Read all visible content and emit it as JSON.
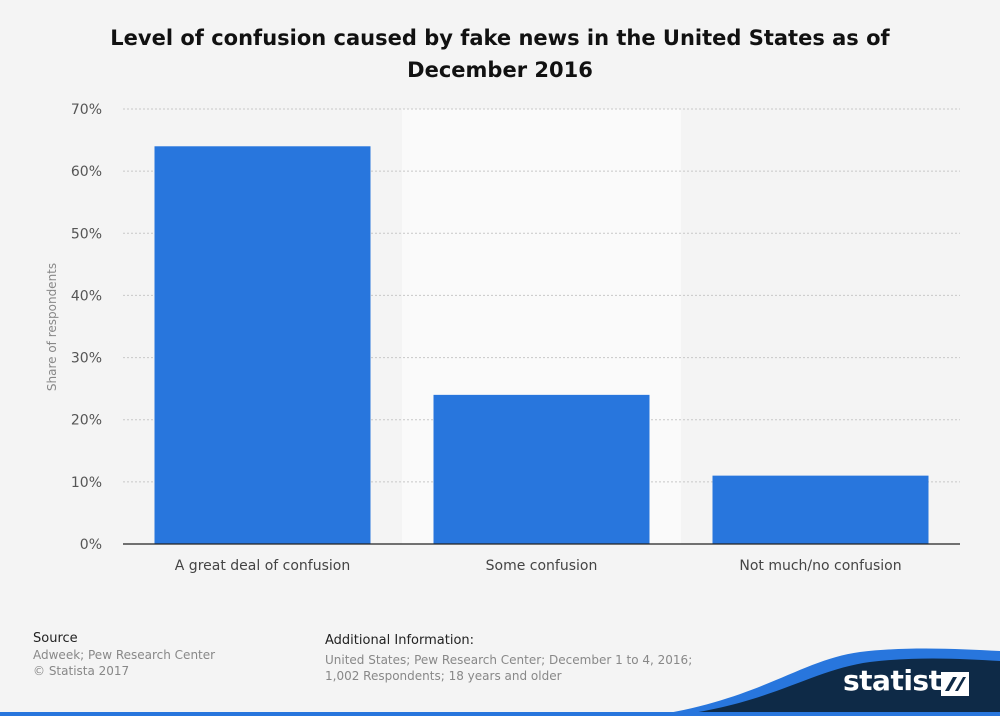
{
  "title": "Level of confusion caused by fake news in the United States as of December 2016",
  "chart_data": {
    "type": "bar",
    "categories": [
      "A great deal of confusion",
      "Some confusion",
      "Not much/no confusion"
    ],
    "values": [
      64,
      24,
      11
    ],
    "ylabel": "Share of respondents",
    "xlabel": "",
    "ylim": [
      0,
      70
    ],
    "yticks": [
      0,
      10,
      20,
      30,
      40,
      50,
      60,
      70
    ],
    "ytick_suffix": "%",
    "grid": true,
    "bar_color": "#2876dd"
  },
  "footer": {
    "source_heading": "Source",
    "source_text": "Adweek; Pew Research Center",
    "copyright": "© Statista 2017",
    "info_heading": "Additional Information:",
    "info_line1": "United States; Pew Research Center; December 1 to 4, 2016;",
    "info_line2": "1,002 Respondents; 18 years and older"
  },
  "logo": {
    "text": "statista",
    "mark_icon": "statista-mark-icon"
  },
  "colors": {
    "accent_dark": "#0e2a47",
    "accent_blue": "#2876dd",
    "background": "#f4f4f4"
  }
}
